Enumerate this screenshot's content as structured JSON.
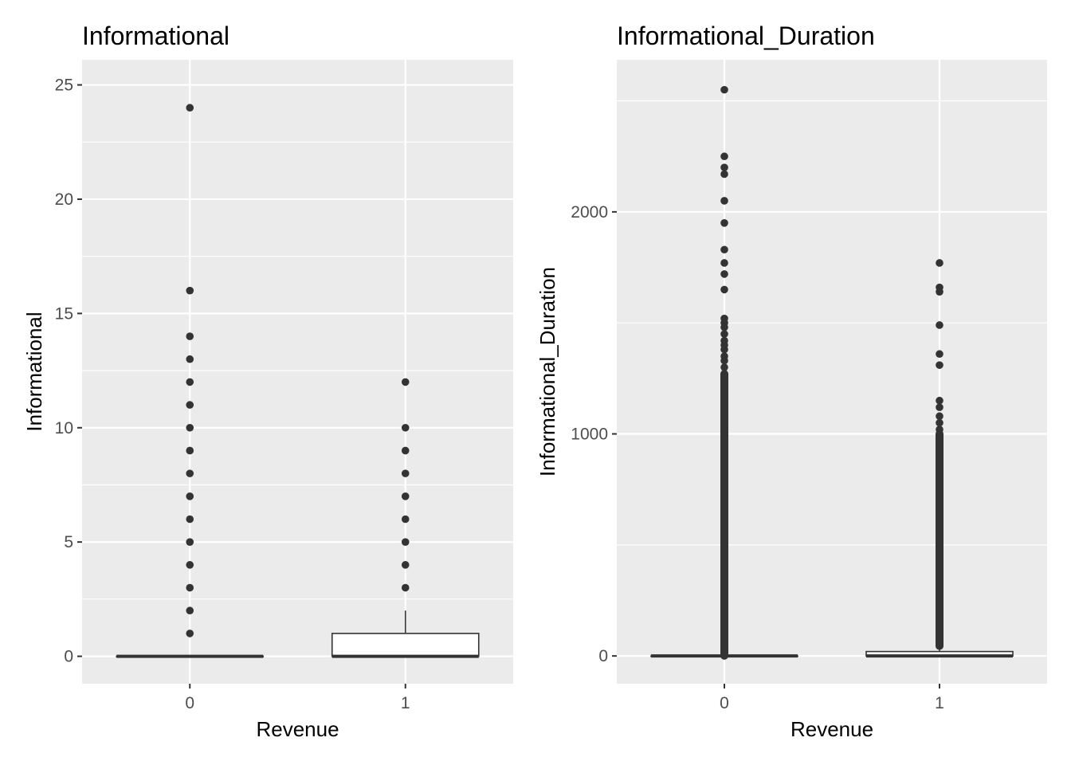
{
  "chart_data": [
    {
      "type": "box",
      "title": "Informational",
      "xlabel": "Revenue",
      "ylabel": "Informational",
      "categories": [
        "0",
        "1"
      ],
      "yticks": [
        0,
        5,
        10,
        15,
        20,
        25
      ],
      "ytick_labels": [
        "0",
        "5",
        "10",
        "15",
        "20",
        "25"
      ],
      "ylim": [
        -1.2,
        26.1
      ],
      "grid": true,
      "boxes": [
        {
          "category": "0",
          "min": 0,
          "q1": 0,
          "median": 0,
          "q3": 0,
          "max": 0,
          "outliers": [
            1,
            2,
            3,
            4,
            5,
            6,
            7,
            8,
            9,
            10,
            11,
            12,
            13,
            14,
            16,
            24
          ]
        },
        {
          "category": "1",
          "min": 0,
          "q1": 0,
          "median": 0,
          "q3": 1,
          "max": 2,
          "outliers": [
            3,
            4,
            5,
            6,
            7,
            8,
            9,
            10,
            12
          ]
        }
      ]
    },
    {
      "type": "box",
      "title": "Informational_Duration",
      "xlabel": "Revenue",
      "ylabel": "Informational_Duration",
      "categories": [
        "0",
        "1"
      ],
      "yticks": [
        0,
        1000,
        2000
      ],
      "ytick_labels": [
        "0",
        "1000",
        "2000"
      ],
      "ylim": [
        -125,
        2685
      ],
      "grid": true,
      "boxes": [
        {
          "category": "0",
          "min": 0,
          "q1": 0,
          "median": 0,
          "q3": 0,
          "max": 0,
          "outliers_dense_range": [
            1,
            1270
          ],
          "outliers": [
            1300,
            1330,
            1350,
            1380,
            1400,
            1420,
            1450,
            1480,
            1500,
            1520,
            1650,
            1720,
            1770,
            1830,
            1950,
            2050,
            2170,
            2200,
            2250,
            2550
          ]
        },
        {
          "category": "1",
          "min": 0,
          "q1": 0,
          "median": 0,
          "q3": 20,
          "max": 40,
          "outliers_dense_range": [
            45,
            1000
          ],
          "outliers": [
            1020,
            1050,
            1080,
            1120,
            1150,
            1310,
            1360,
            1490,
            1640,
            1660,
            1770
          ]
        }
      ]
    }
  ]
}
